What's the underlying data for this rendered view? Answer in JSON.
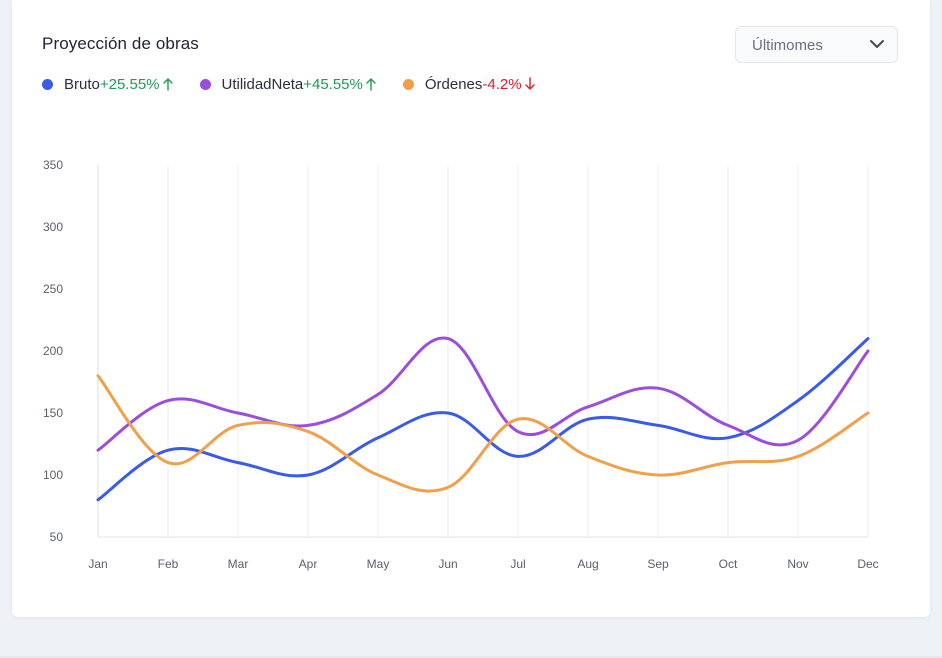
{
  "card": {
    "title": "Proyección de obras",
    "period_select": {
      "value": "Últimomes",
      "icon": "chevron-down-icon"
    }
  },
  "legend": [
    {
      "label": "Bruto",
      "change": "+25.55%",
      "direction": "up",
      "color": "#3a5ae8"
    },
    {
      "label": "UtilidadNeta",
      "change": "+45.55%",
      "direction": "up",
      "color": "#9b4ddb"
    },
    {
      "label": "Órdenes",
      "change": "-4.2%",
      "direction": "down",
      "color": "#f0a04b"
    }
  ],
  "colors": {
    "up": "#1f9a57",
    "down": "#d9202b",
    "grid": "#eceef2",
    "axis_text": "#5a5f6b"
  },
  "chart_data": {
    "type": "line",
    "title": "",
    "xlabel": "",
    "ylabel": "",
    "categories": [
      "Jan",
      "Feb",
      "Mar",
      "Apr",
      "May",
      "Jun",
      "Jul",
      "Aug",
      "Sep",
      "Oct",
      "Nov",
      "Dec"
    ],
    "ylim": [
      50,
      350
    ],
    "yticks": [
      50,
      100,
      150,
      200,
      250,
      300,
      350
    ],
    "grid": "vertical",
    "legend_position": "top-left",
    "series": [
      {
        "name": "Bruto",
        "color": "#3a5ae8",
        "values": [
          80,
          120,
          110,
          100,
          130,
          150,
          115,
          145,
          140,
          130,
          160,
          210
        ]
      },
      {
        "name": "UtilidadNeta",
        "color": "#9b4ddb",
        "values": [
          120,
          160,
          150,
          140,
          165,
          210,
          135,
          155,
          170,
          140,
          128,
          200
        ]
      },
      {
        "name": "Órdenes",
        "color": "#f0a04b",
        "values": [
          180,
          110,
          140,
          135,
          100,
          90,
          145,
          115,
          100,
          110,
          115,
          150
        ]
      }
    ]
  }
}
